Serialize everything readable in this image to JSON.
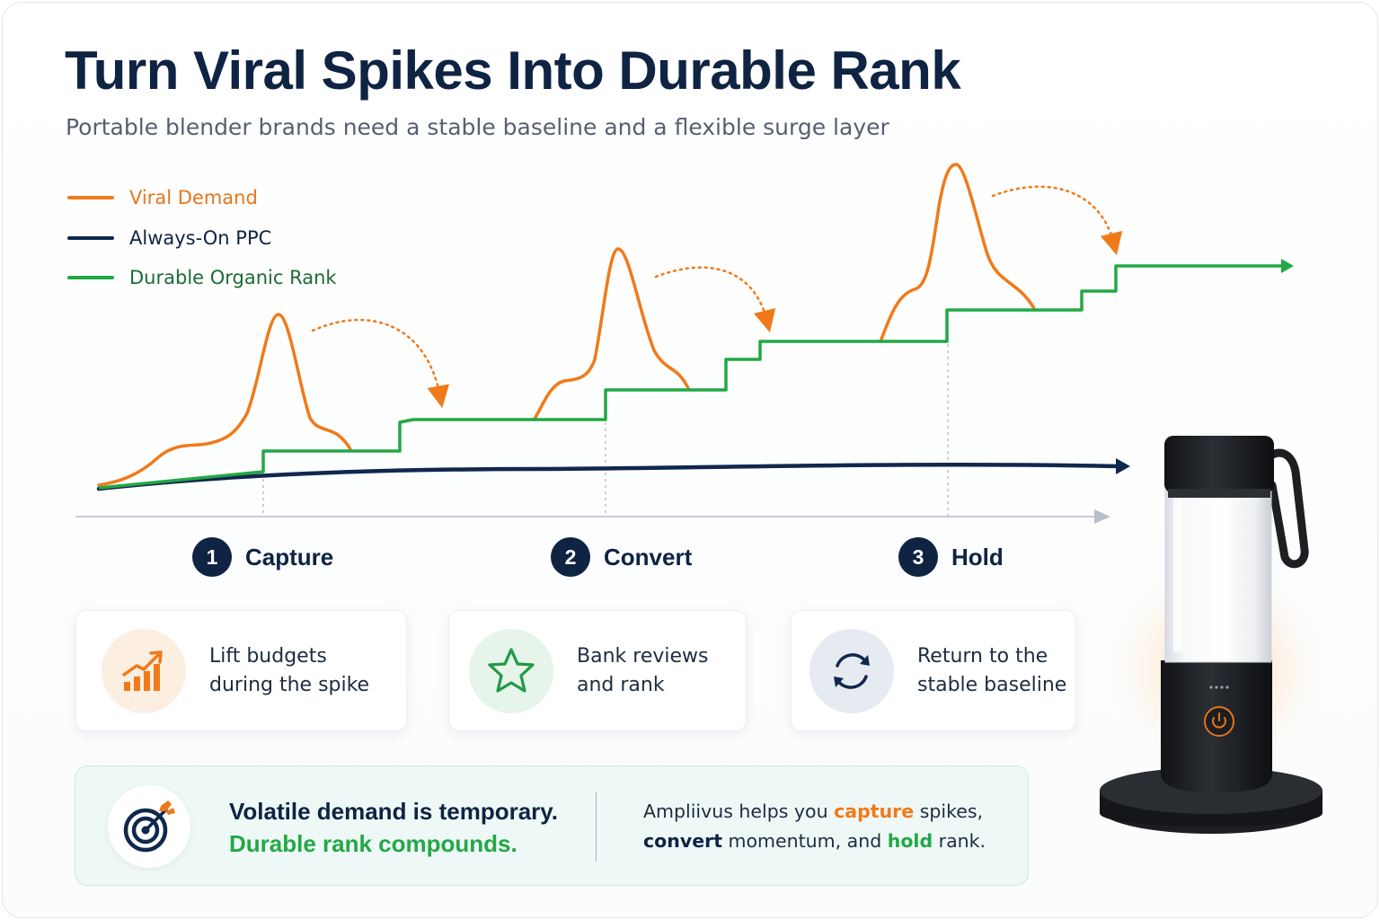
{
  "header": {
    "title": "Turn Viral Spikes Into Durable Rank",
    "subtitle": "Portable blender brands need a stable baseline and a flexible surge layer"
  },
  "colors": {
    "viral": "#f07a1a",
    "ppc": "#10284d",
    "organic": "#22a845",
    "navy": "#0f2343"
  },
  "legend": [
    {
      "label": "Viral Demand",
      "color": "#f07a1a"
    },
    {
      "label": "Always-On PPC",
      "color": "#10284d"
    },
    {
      "label": "Durable Organic Rank",
      "color": "#22a845"
    }
  ],
  "steps": [
    {
      "number": "1",
      "label": "Capture"
    },
    {
      "number": "2",
      "label": "Convert"
    },
    {
      "number": "3",
      "label": "Hold"
    }
  ],
  "cards": [
    {
      "text_line1": "Lift budgets",
      "text_line2": "during the spike",
      "icon": "bar-chart-trend-icon"
    },
    {
      "text_line1": "Bank reviews",
      "text_line2": "and rank",
      "icon": "star-icon"
    },
    {
      "text_line1": "Return to the",
      "text_line2": "stable baseline",
      "icon": "refresh-icon"
    }
  ],
  "banner": {
    "headline_line1": "Volatile demand is temporary.",
    "headline_line2": "Durable rank compounds.",
    "body_pre": "Ampliivus helps you ",
    "body_capture": "capture",
    "body_mid1": " spikes,",
    "body_convert": "convert",
    "body_mid2": " momentum, and ",
    "body_hold": "hold",
    "body_post": " rank.",
    "icon": "target-icon"
  },
  "product": {
    "name": "portable-blender-illustration"
  }
}
